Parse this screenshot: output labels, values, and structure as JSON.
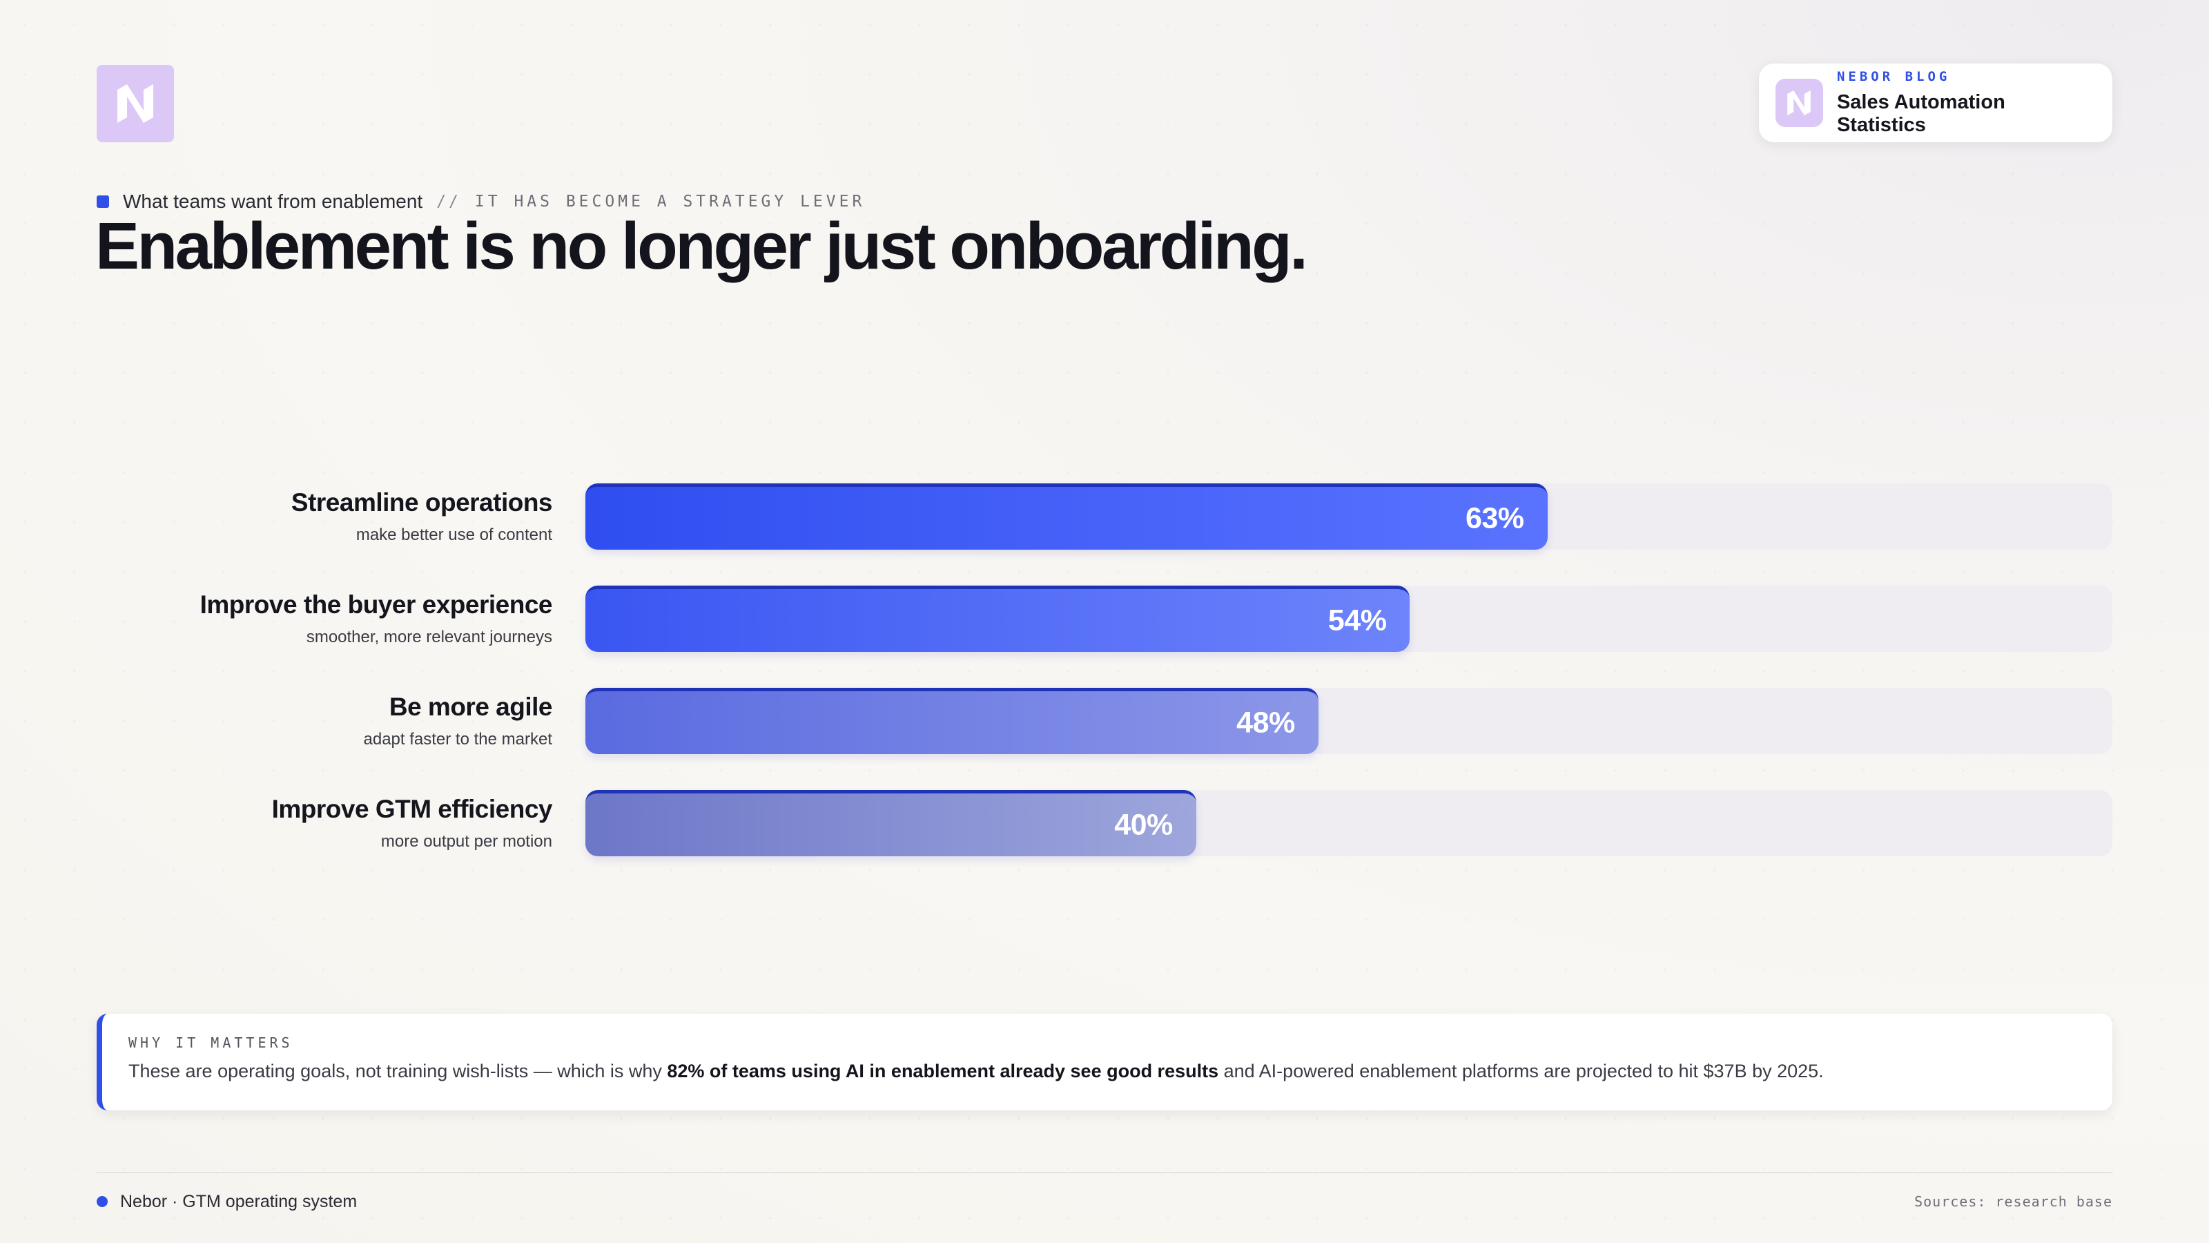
{
  "brand": {
    "logo_icon": "nebor-logo-icon",
    "accent": "#2f4fe8",
    "logo_bg": "#dcc8f6"
  },
  "badge": {
    "kicker": "NEBOR BLOG",
    "title": "Sales Automation Statistics"
  },
  "eyebrow": {
    "label": "What teams want from enablement",
    "separator": "//",
    "tag": "IT HAS BECOME A STRATEGY LEVER"
  },
  "headline": "Enablement is no longer just onboarding.",
  "chart_data": {
    "type": "bar",
    "orientation": "horizontal",
    "categories": [
      "Streamline operations",
      "Improve the buyer experience",
      "Be more agile",
      "Improve GTM efficiency"
    ],
    "subtitles": [
      "make better use of content",
      "smoother, more relevant journeys",
      "adapt faster to the market",
      "more output per motion"
    ],
    "values": [
      63,
      54,
      48,
      40
    ],
    "value_labels": [
      "63%",
      "54%",
      "48%",
      "40%"
    ],
    "xlim": [
      0,
      100
    ],
    "grid": false,
    "bar_colors": [
      [
        "#2f4ef0",
        "#5a73ff"
      ],
      [
        "#3a56f2",
        "#6d84fb"
      ],
      [
        "#5a6be0",
        "#8c97e8"
      ],
      [
        "#6d77c8",
        "#9ea6dc"
      ]
    ]
  },
  "callout": {
    "kicker": "WHY IT MATTERS",
    "text_before": "These are operating goals, not training wish-lists — which is why ",
    "text_bold": "82% of teams using AI in enablement already see good results",
    "text_after": " and AI-powered enablement platforms are projected to hit $37B by 2025."
  },
  "footer": {
    "brand": "Nebor · GTM operating system",
    "sources": "Sources: research base"
  }
}
